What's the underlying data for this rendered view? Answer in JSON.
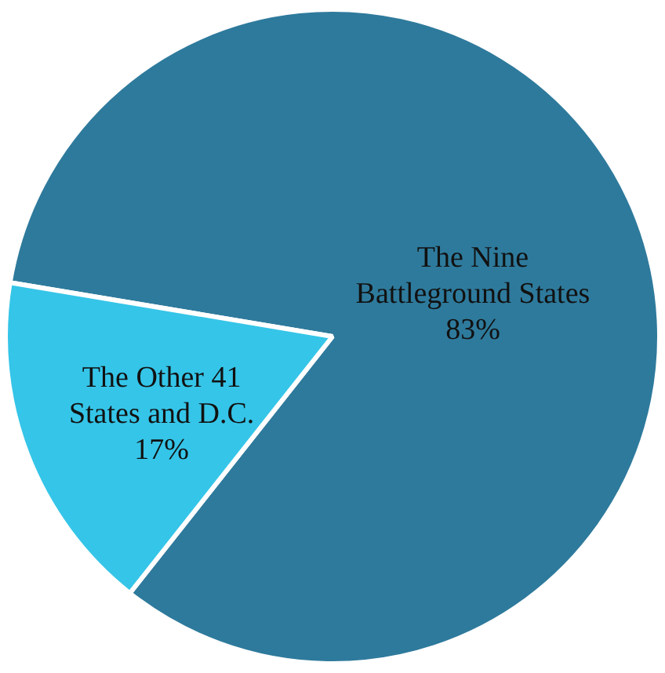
{
  "chart_data": {
    "type": "pie",
    "categories": [
      "The Nine\nBattleground States",
      "The Other 41\nStates and D.C."
    ],
    "values": [
      83,
      17
    ],
    "colors": [
      "#2e7a9c",
      "#35c5e8"
    ],
    "value_labels": [
      "83%",
      "17%"
    ]
  }
}
